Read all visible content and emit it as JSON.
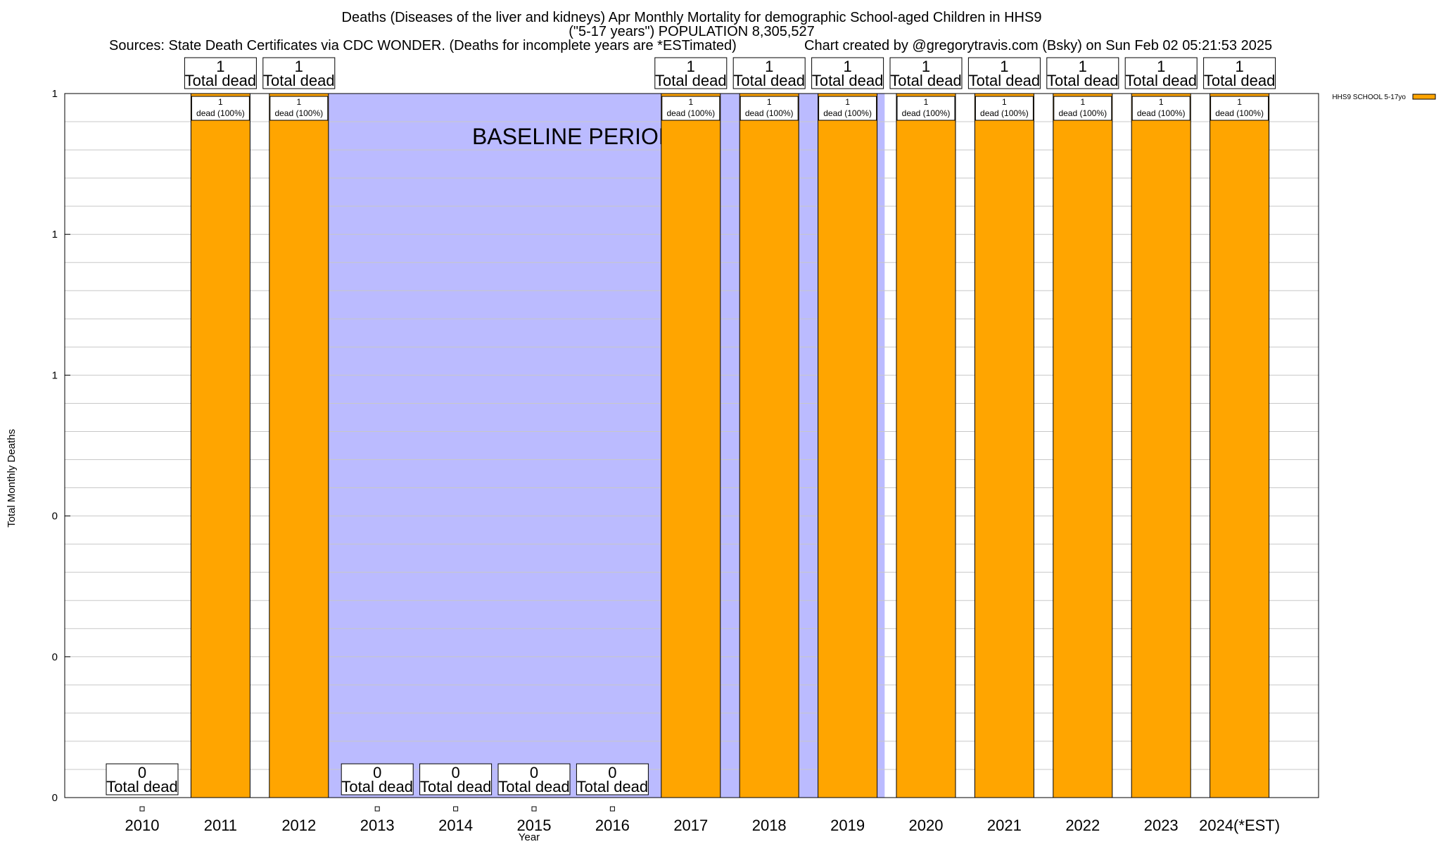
{
  "chart_data": {
    "type": "bar",
    "title": "Deaths (Diseases of the liver and kidneys) Apr Monthly Mortality for demographic School-aged Children in HHS9",
    "subtitle": "(\"5-17 years\") POPULATION 8,305,527",
    "source_left": "Sources: State Death Certificates via CDC WONDER. (Deaths for incomplete years are *ESTimated)",
    "source_right": "Chart created by @gregorytravis.com (Bsky) on Sun Feb 02 05:21:53 2025",
    "xlabel": "Year",
    "ylabel": "Total Monthly Deaths",
    "categories": [
      "2010",
      "2011",
      "2012",
      "2013",
      "2014",
      "2015",
      "2016",
      "2017",
      "2018",
      "2019",
      "2020",
      "2021",
      "2022",
      "2023",
      "2024(*EST)"
    ],
    "series": [
      {
        "name": "HHS9 SCHOOL 5-17yo",
        "color": "#ffa500",
        "values": [
          0,
          1,
          1,
          0,
          0,
          0,
          0,
          1,
          1,
          1,
          1,
          1,
          1,
          1,
          1
        ]
      }
    ],
    "ylim": [
      0,
      1
    ],
    "y_tick_labels": [
      "0",
      "0",
      "0",
      "1",
      "1",
      "1"
    ],
    "total_label_suffix": "Total dead",
    "inner_label_suffix": "dead (100%)",
    "baseline_label": "BASELINE PERIOD",
    "baseline_color": "#bbbbff",
    "baseline_range": [
      "2012",
      "2019"
    ],
    "grid": true,
    "legend_position": "top-right"
  }
}
